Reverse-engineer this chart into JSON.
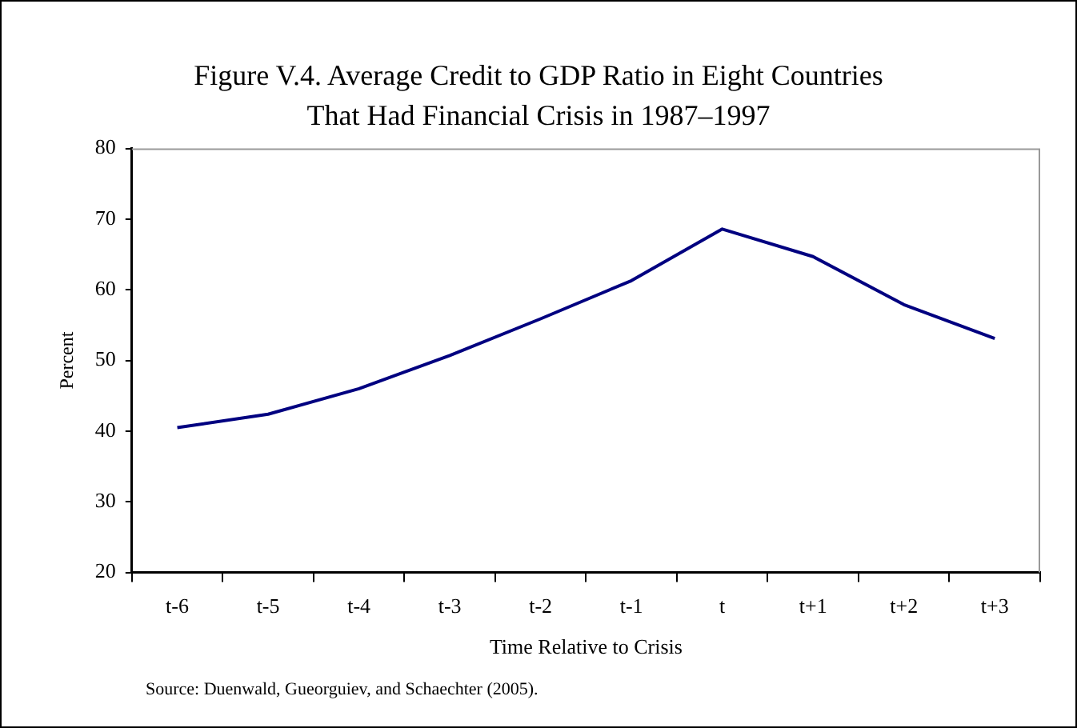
{
  "chart_data": {
    "type": "line",
    "title": "Figure V.4. Average Credit to GDP Ratio in Eight Countries That Had Financial Crisis in 1987–1997",
    "xlabel": "Time Relative to Crisis",
    "ylabel": "Percent",
    "categories": [
      "t-6",
      "t-5",
      "t-4",
      "t-3",
      "t-2",
      "t-1",
      "t",
      "t+1",
      "t+2",
      "t+3"
    ],
    "series": [
      {
        "color": "#000080",
        "values": [
          40.5,
          42.4,
          46,
          50.7,
          55.9,
          61.3,
          68.6,
          64.7,
          57.9,
          53.1
        ]
      }
    ],
    "ylim": [
      20,
      80
    ],
    "yticks": [
      20,
      30,
      40,
      50,
      60,
      70,
      80
    ],
    "grid": false,
    "legend": false,
    "marker": "none",
    "line_style": "solid",
    "annotations": [
      "Source: Duenwald, Gueorguiev, and Schaechter (2005)."
    ]
  }
}
